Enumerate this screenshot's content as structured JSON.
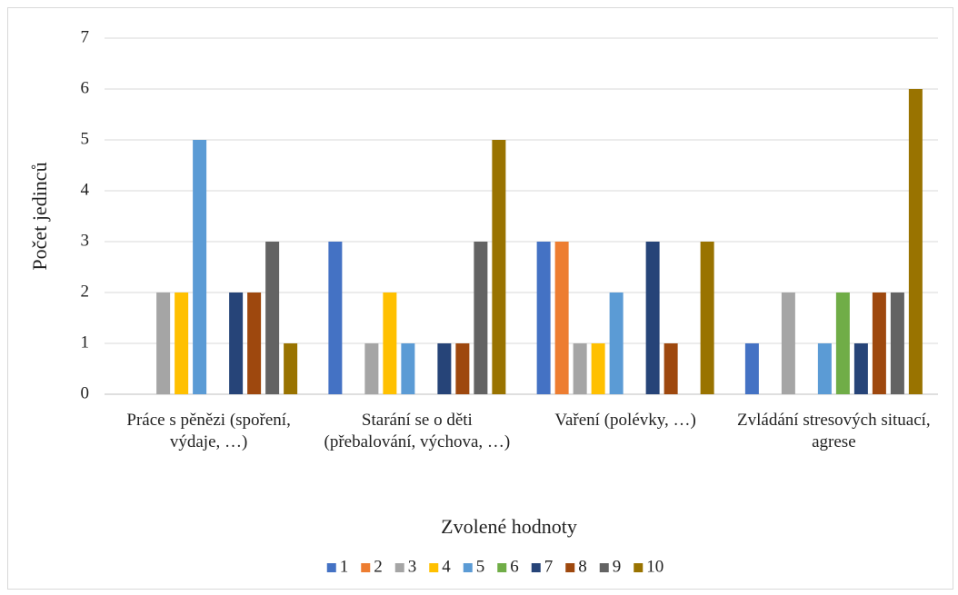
{
  "chart_data": {
    "type": "bar",
    "categories": [
      "Práce s pěnězi (spoření, výdaje, …)",
      "Starání se o děti (přebalování, výchova, …)",
      "Vaření (polévky, …)",
      "Zvládání stresových situací, agrese"
    ],
    "series": [
      {
        "name": "1",
        "color": "#4472c4",
        "values": [
          0,
          3,
          3,
          1
        ]
      },
      {
        "name": "2",
        "color": "#ed7d31",
        "values": [
          0,
          0,
          3,
          0
        ]
      },
      {
        "name": "3",
        "color": "#a5a5a5",
        "values": [
          2,
          1,
          1,
          2
        ]
      },
      {
        "name": "4",
        "color": "#ffc000",
        "values": [
          2,
          2,
          1,
          0
        ]
      },
      {
        "name": "5",
        "color": "#5b9bd5",
        "values": [
          5,
          1,
          2,
          1
        ]
      },
      {
        "name": "6",
        "color": "#70ad47",
        "values": [
          0,
          0,
          0,
          2
        ]
      },
      {
        "name": "7",
        "color": "#264478",
        "values": [
          2,
          1,
          3,
          1
        ]
      },
      {
        "name": "8",
        "color": "#9e480e",
        "values": [
          2,
          1,
          1,
          2
        ]
      },
      {
        "name": "9",
        "color": "#636363",
        "values": [
          3,
          3,
          0,
          2
        ]
      },
      {
        "name": "10",
        "color": "#997300",
        "values": [
          1,
          5,
          3,
          6
        ]
      }
    ],
    "ylabel": "Počet jedinců",
    "xlabel": "Zvolené hodnoty",
    "ylim": [
      0,
      7
    ],
    "yticks": [
      0,
      1,
      2,
      3,
      4,
      5,
      6,
      7
    ],
    "grid": true,
    "legend": "bottom"
  }
}
